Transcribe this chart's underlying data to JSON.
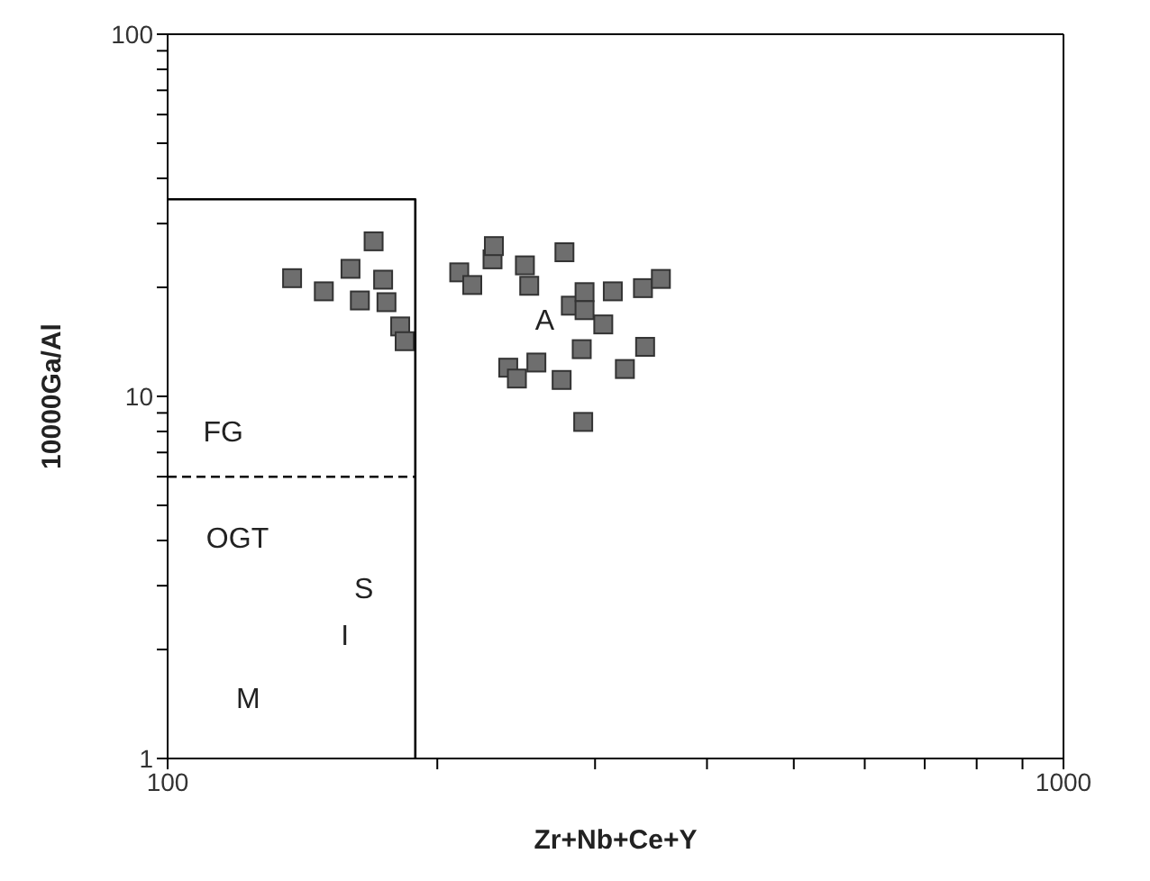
{
  "chart_data": {
    "type": "scatter",
    "xlabel": "Zr+Nb+Ce+Y",
    "ylabel": "10000Ga/Al",
    "log": "xy",
    "grid": false,
    "legend": false,
    "marker": "square",
    "xlim": [
      100,
      1000
    ],
    "ylim": [
      1,
      100
    ],
    "xticks": [
      100,
      {
        "value": 200,
        "label": null
      },
      {
        "value": 300,
        "label": null
      },
      {
        "value": 400,
        "label": null
      },
      {
        "value": 500,
        "label": null
      },
      {
        "value": 600,
        "label": null
      },
      {
        "value": 700,
        "label": null
      },
      {
        "value": 800,
        "label": null
      },
      {
        "value": 900,
        "label": null
      },
      1000
    ],
    "yticks": [
      1,
      {
        "value": 2,
        "label": null
      },
      {
        "value": 3,
        "label": null
      },
      {
        "value": 4,
        "label": null
      },
      {
        "value": 5,
        "label": null
      },
      {
        "value": 6,
        "label": null
      },
      {
        "value": 7,
        "label": null
      },
      {
        "value": 8,
        "label": null
      },
      {
        "value": 9,
        "label": null
      },
      10,
      {
        "value": 20,
        "label": null
      },
      {
        "value": 30,
        "label": null
      },
      {
        "value": 40,
        "label": null
      },
      {
        "value": 50,
        "label": null
      },
      {
        "value": 60,
        "label": null
      },
      {
        "value": 70,
        "label": null
      },
      {
        "value": 80,
        "label": null
      },
      {
        "value": 90,
        "label": null
      },
      100
    ],
    "series": [
      {
        "type": "scatter",
        "color": "#6e6e6e",
        "x": [
          137.7,
          149.4,
          160,
          169.8,
          163.9,
          174,
          175.5,
          181.8,
          183.9,
          211.6,
          218.8,
          230.5,
          231.3,
          250.5,
          253.3,
          277.3,
          240,
          245.4,
          258,
          275.3,
          281.9,
          292,
          292,
          289.9,
          306.4,
          314,
          323.9,
          341.2,
          339.3,
          355.3,
          291
        ],
        "values": [
          21.2,
          19.5,
          22.5,
          26.8,
          18.4,
          21.0,
          18.2,
          15.6,
          14.2,
          22.0,
          20.3,
          23.9,
          26.0,
          23.0,
          20.2,
          25.0,
          12.0,
          11.2,
          12.4,
          11.1,
          17.8,
          19.4,
          17.3,
          13.5,
          15.8,
          19.5,
          11.9,
          13.7,
          19.9,
          21.1,
          8.5
        ]
      },
      {
        "type": "line",
        "color": "#000000",
        "line_style": "solid",
        "marker": "none",
        "x": [
          100,
          189,
          189
        ],
        "values": [
          35,
          35,
          1
        ]
      },
      {
        "type": "line",
        "color": "#000000",
        "line_style": "dashed",
        "marker": "none",
        "x": [
          100,
          189
        ],
        "values": [
          6,
          6
        ]
      }
    ],
    "annotations": [
      "FG",
      "OGT",
      "S",
      "I",
      "M",
      "A"
    ]
  }
}
